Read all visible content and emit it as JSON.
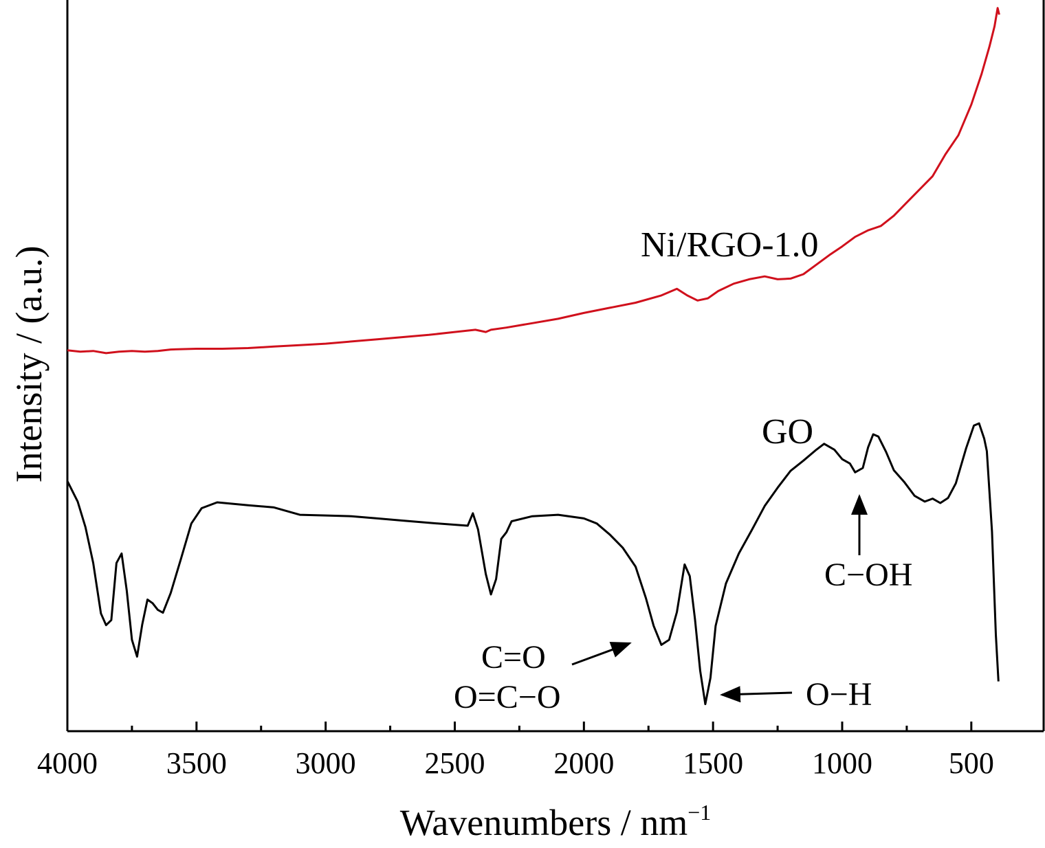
{
  "chart_data": {
    "type": "line",
    "xlabel": "Wavenumbers / nm",
    "xlabel_superscript": "−1",
    "ylabel": "Intensity / (a.u.)",
    "xlim": [
      4000,
      220
    ],
    "ylim": [
      0,
      100
    ],
    "x_inverted": true,
    "y_ticks_visible": false,
    "grid": false,
    "x_ticks": [
      4000,
      3500,
      3000,
      2500,
      2000,
      1500,
      1000,
      500
    ],
    "series": [
      {
        "name": "Ni/RGO-1.0",
        "color": "#d0101c",
        "points": [
          [
            4000,
            52.1
          ],
          [
            3950,
            51.9
          ],
          [
            3900,
            52.0
          ],
          [
            3850,
            51.7
          ],
          [
            3800,
            51.9
          ],
          [
            3750,
            52.0
          ],
          [
            3700,
            51.9
          ],
          [
            3650,
            52.0
          ],
          [
            3600,
            52.2
          ],
          [
            3500,
            52.3
          ],
          [
            3400,
            52.3
          ],
          [
            3300,
            52.4
          ],
          [
            3200,
            52.6
          ],
          [
            3100,
            52.8
          ],
          [
            3000,
            53.0
          ],
          [
            2900,
            53.3
          ],
          [
            2800,
            53.6
          ],
          [
            2700,
            53.9
          ],
          [
            2600,
            54.2
          ],
          [
            2500,
            54.6
          ],
          [
            2420,
            54.9
          ],
          [
            2380,
            54.6
          ],
          [
            2360,
            54.9
          ],
          [
            2300,
            55.2
          ],
          [
            2200,
            55.8
          ],
          [
            2100,
            56.4
          ],
          [
            2000,
            57.2
          ],
          [
            1900,
            57.9
          ],
          [
            1800,
            58.6
          ],
          [
            1700,
            59.6
          ],
          [
            1640,
            60.5
          ],
          [
            1600,
            59.6
          ],
          [
            1560,
            58.9
          ],
          [
            1520,
            59.2
          ],
          [
            1480,
            60.2
          ],
          [
            1420,
            61.2
          ],
          [
            1360,
            61.8
          ],
          [
            1300,
            62.2
          ],
          [
            1250,
            61.8
          ],
          [
            1200,
            61.9
          ],
          [
            1150,
            62.5
          ],
          [
            1100,
            63.8
          ],
          [
            1050,
            65.1
          ],
          [
            1000,
            66.3
          ],
          [
            950,
            67.6
          ],
          [
            900,
            68.5
          ],
          [
            850,
            69.1
          ],
          [
            800,
            70.5
          ],
          [
            750,
            72.3
          ],
          [
            700,
            74.1
          ],
          [
            650,
            75.9
          ],
          [
            600,
            78.9
          ],
          [
            550,
            81.5
          ],
          [
            500,
            85.7
          ],
          [
            460,
            89.9
          ],
          [
            430,
            93.6
          ],
          [
            410,
            96.4
          ],
          [
            398,
            98.9
          ],
          [
            392,
            98.0
          ]
        ]
      },
      {
        "name": "GO",
        "color": "#000000",
        "points": [
          [
            4000,
            34.2
          ],
          [
            3960,
            31.4
          ],
          [
            3930,
            27.9
          ],
          [
            3900,
            23.0
          ],
          [
            3870,
            16.1
          ],
          [
            3850,
            14.5
          ],
          [
            3830,
            15.2
          ],
          [
            3810,
            23.0
          ],
          [
            3790,
            24.3
          ],
          [
            3770,
            19.2
          ],
          [
            3750,
            12.5
          ],
          [
            3730,
            10.2
          ],
          [
            3710,
            14.6
          ],
          [
            3690,
            18.0
          ],
          [
            3670,
            17.5
          ],
          [
            3650,
            16.6
          ],
          [
            3630,
            16.2
          ],
          [
            3600,
            18.9
          ],
          [
            3560,
            23.6
          ],
          [
            3520,
            28.4
          ],
          [
            3480,
            30.5
          ],
          [
            3420,
            31.3
          ],
          [
            3300,
            30.9
          ],
          [
            3200,
            30.6
          ],
          [
            3100,
            29.6
          ],
          [
            3000,
            29.5
          ],
          [
            2900,
            29.4
          ],
          [
            2800,
            29.1
          ],
          [
            2700,
            28.8
          ],
          [
            2600,
            28.5
          ],
          [
            2450,
            28.1
          ],
          [
            2430,
            29.8
          ],
          [
            2410,
            27.6
          ],
          [
            2380,
            21.5
          ],
          [
            2360,
            18.7
          ],
          [
            2340,
            20.8
          ],
          [
            2320,
            26.3
          ],
          [
            2300,
            27.2
          ],
          [
            2280,
            28.7
          ],
          [
            2200,
            29.4
          ],
          [
            2100,
            29.6
          ],
          [
            2000,
            29.1
          ],
          [
            1950,
            28.4
          ],
          [
            1900,
            26.9
          ],
          [
            1850,
            25.1
          ],
          [
            1800,
            22.5
          ],
          [
            1760,
            18.2
          ],
          [
            1730,
            14.4
          ],
          [
            1700,
            11.8
          ],
          [
            1670,
            12.5
          ],
          [
            1640,
            16.3
          ],
          [
            1610,
            22.8
          ],
          [
            1590,
            21.2
          ],
          [
            1570,
            15.3
          ],
          [
            1550,
            8.3
          ],
          [
            1530,
            3.7
          ],
          [
            1510,
            7.3
          ],
          [
            1490,
            14.4
          ],
          [
            1450,
            20.2
          ],
          [
            1400,
            24.3
          ],
          [
            1350,
            27.5
          ],
          [
            1300,
            30.8
          ],
          [
            1250,
            33.3
          ],
          [
            1200,
            35.6
          ],
          [
            1150,
            37.0
          ],
          [
            1100,
            38.5
          ],
          [
            1070,
            39.3
          ],
          [
            1030,
            38.5
          ],
          [
            1000,
            37.2
          ],
          [
            970,
            36.6
          ],
          [
            950,
            35.4
          ],
          [
            920,
            36.0
          ],
          [
            900,
            38.8
          ],
          [
            880,
            40.6
          ],
          [
            860,
            40.3
          ],
          [
            830,
            38.2
          ],
          [
            800,
            35.7
          ],
          [
            760,
            34.1
          ],
          [
            720,
            32.2
          ],
          [
            680,
            31.4
          ],
          [
            650,
            31.8
          ],
          [
            620,
            31.2
          ],
          [
            590,
            31.9
          ],
          [
            560,
            33.9
          ],
          [
            520,
            38.7
          ],
          [
            490,
            41.8
          ],
          [
            470,
            42.1
          ],
          [
            450,
            40.0
          ],
          [
            440,
            38.3
          ],
          [
            420,
            27.3
          ],
          [
            405,
            13.2
          ],
          [
            395,
            6.8
          ]
        ]
      }
    ],
    "labels": {
      "ni_rgo": "Ni/RGO-1.0",
      "go": "GO",
      "c_oh": "C−OH",
      "c_eq_o": "C=O",
      "o_eq_c_o": "O=C−O",
      "o_h": "O−H"
    }
  }
}
